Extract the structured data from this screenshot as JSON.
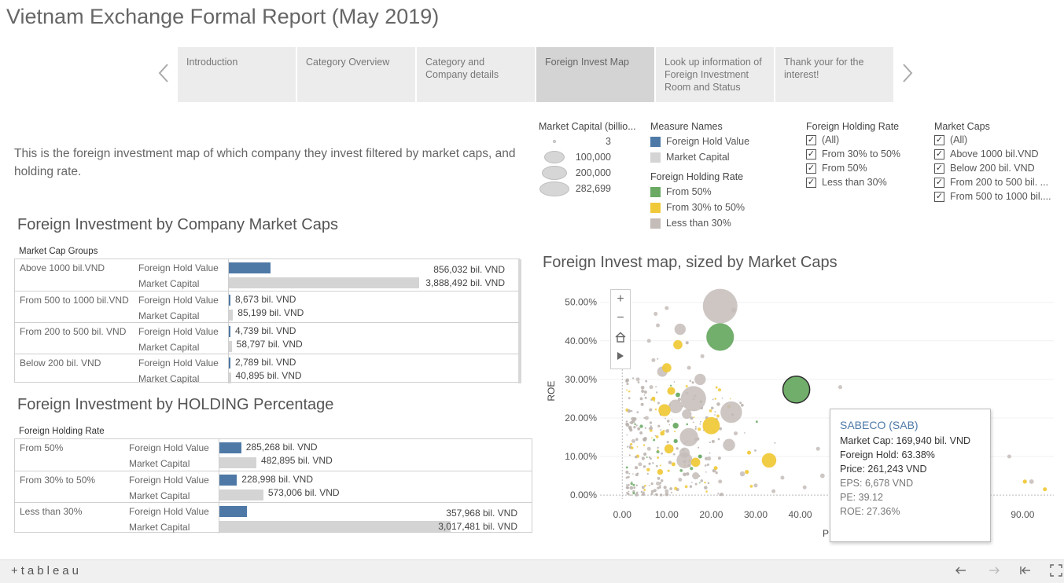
{
  "title": "Vietnam Exchange Formal Report (May 2019)",
  "story": {
    "prev_icon": "chevron-left-icon",
    "next_icon": "chevron-right-icon",
    "tabs": [
      {
        "label": "Introduction"
      },
      {
        "label": "Category Overview"
      },
      {
        "label": "Category and Company details"
      },
      {
        "label": "Foreign Invest Map",
        "active": true
      },
      {
        "label": "Look up information of Foreign Investment Room and Status"
      },
      {
        "label": "Thank your for the interest!"
      }
    ]
  },
  "intro_text": "This is the foreign investment map of which company they invest filtered by market caps, and holding rate.",
  "legends": {
    "size": {
      "title": "Market Capital (billio...",
      "items": [
        "3",
        "100,000",
        "200,000",
        "282,699"
      ]
    },
    "measure_names": {
      "title": "Measure Names",
      "items": [
        {
          "label": "Foreign Hold Value",
          "color": "#4e79a7"
        },
        {
          "label": "Market Capital",
          "color": "#d4d4d4"
        }
      ]
    },
    "holding_rate_color": {
      "title": "Foreign Holding Rate",
      "items": [
        {
          "label": "From 50%",
          "color": "#6aaa64"
        },
        {
          "label": "From 30% to 50%",
          "color": "#f0c93b"
        },
        {
          "label": "Less than 30%",
          "color": "#c4bcb8"
        }
      ]
    },
    "holding_rate_filter": {
      "title": "Foreign Holding Rate",
      "items": [
        "(All)",
        "From 30% to 50%",
        "From 50%",
        "Less than 30%"
      ]
    },
    "market_caps_filter": {
      "title": "Market Caps",
      "items": [
        "(All)",
        "Above 1000 bil.VND",
        "Below 200 bil. VND",
        "From 200 to 500 bil. ...",
        "From 500 to 1000 bil...."
      ]
    }
  },
  "caps_table": {
    "title": "Foreign Investment by Company Market Caps",
    "group_header": "Market Cap Groups",
    "measure_labels": [
      "Foreign Hold Value",
      "Market Capital"
    ],
    "max_value": 3888492,
    "rows": [
      {
        "group": "Above 1000 bil.VND",
        "fhv": 856032,
        "fhv_label": "856,032 bil. VND",
        "mc": 3888492,
        "mc_label": "3,888,492 bil. VND"
      },
      {
        "group": "From 500 to 1000 bil.VND",
        "fhv": 8673,
        "fhv_label": "8,673 bil. VND",
        "mc": 85199,
        "mc_label": "85,199 bil. VND"
      },
      {
        "group": "From 200 to 500 bil. VND",
        "fhv": 4739,
        "fhv_label": "4,739 bil. VND",
        "mc": 58797,
        "mc_label": "58,797 bil. VND"
      },
      {
        "group": "Below 200 bil. VND",
        "fhv": 2789,
        "fhv_label": "2,789 bil. VND",
        "mc": 40895,
        "mc_label": "40,895 bil. VND"
      }
    ]
  },
  "holding_table": {
    "title": "Foreign Investment by HOLDING Percentage",
    "group_header": "Foreign Holding Rate",
    "measure_labels": [
      "Foreign Hold Value",
      "Market Capital"
    ],
    "max_value": 3017481,
    "rows": [
      {
        "group": "From 50%",
        "fhv": 285268,
        "fhv_label": "285,268 bil. VND",
        "mc": 482895,
        "mc_label": "482,895 bil. VND"
      },
      {
        "group": "From 30% to 50%",
        "fhv": 228998,
        "fhv_label": "228,998 bil. VND",
        "mc": 573006,
        "mc_label": "573,006 bil. VND"
      },
      {
        "group": "Less than 30%",
        "fhv": 357968,
        "fhv_label": "357,968 bil. VND",
        "mc": 3017481,
        "mc_label": "3,017,481 bil. VND"
      }
    ]
  },
  "chart_data": {
    "type": "scatter",
    "title": "Foreign Invest map, sized by Market Caps",
    "xlabel": "P",
    "ylabel": "ROE",
    "xlim": [
      -5,
      97
    ],
    "ylim": [
      -1,
      53
    ],
    "x_ticks": [
      "0.00",
      "10.00",
      "20.00",
      "30.00",
      "40.00",
      "90.00"
    ],
    "y_ticks": [
      "0.00%",
      "10.00%",
      "20.00%",
      "30.00%",
      "40.00%",
      "50.00%"
    ],
    "size_by": "Market Capital",
    "color_by": "Foreign Holding Rate",
    "points": [
      {
        "x": 22.0,
        "y": 49.0,
        "cap": 282699,
        "rate": "Less than 30%"
      },
      {
        "x": 22.0,
        "y": 41.0,
        "cap": 180000,
        "rate": "From 50%"
      },
      {
        "x": 39.12,
        "y": 27.36,
        "cap": 169940,
        "rate": "From 50%",
        "label": "SABECO (SAB)"
      },
      {
        "x": 16.0,
        "y": 25.0,
        "cap": 150000,
        "rate": "Less than 30%"
      },
      {
        "x": 24.5,
        "y": 21.5,
        "cap": 110000,
        "rate": "Less than 30%"
      },
      {
        "x": 20.0,
        "y": 18.0,
        "cap": 70000,
        "rate": "From 30% to 50%"
      },
      {
        "x": 15.0,
        "y": 15.0,
        "cap": 80000,
        "rate": "Less than 30%"
      },
      {
        "x": 14.0,
        "y": 9.0,
        "cap": 60000,
        "rate": "Less than 30%"
      },
      {
        "x": 33.0,
        "y": 9.0,
        "cap": 50000,
        "rate": "From 30% to 50%"
      },
      {
        "x": 12.0,
        "y": 23.0,
        "cap": 45000,
        "rate": "Less than 30%"
      },
      {
        "x": 13.0,
        "y": 43.0,
        "cap": 30000,
        "rate": "Less than 30%"
      },
      {
        "x": 12.5,
        "y": 39.0,
        "cap": 20000,
        "rate": "From 30% to 50%"
      },
      {
        "x": 9.5,
        "y": 22.0,
        "cap": 35000,
        "rate": "From 30% to 50%"
      },
      {
        "x": 24.0,
        "y": 13.0,
        "cap": 35000,
        "rate": "Less than 30%"
      },
      {
        "x": 17.5,
        "y": 30.0,
        "cap": 30000,
        "rate": "Less than 30%"
      },
      {
        "x": 10.0,
        "y": 33.0,
        "cap": 20000,
        "rate": "From 30% to 50%"
      },
      {
        "x": 11.0,
        "y": 27.0,
        "cap": 15000,
        "rate": "From 30% to 50%"
      },
      {
        "x": 9.0,
        "y": 32.0,
        "cap": 25000,
        "rate": "Less than 30%"
      },
      {
        "x": 14.0,
        "y": 11.0,
        "cap": 25000,
        "rate": "Less than 30%"
      },
      {
        "x": 16.5,
        "y": 8.5,
        "cap": 20000,
        "rate": "From 30% to 50%"
      },
      {
        "x": 10.5,
        "y": 12.0,
        "cap": 20000,
        "rate": "From 30% to 50%"
      },
      {
        "x": 16.5,
        "y": 5.0,
        "cap": 12000,
        "rate": "Less than 30%"
      },
      {
        "x": 14.5,
        "y": 21.0,
        "cap": 22000,
        "rate": "Less than 30%"
      },
      {
        "x": 8.5,
        "y": 6.0,
        "cap": 8000,
        "rate": "From 30% to 50%"
      },
      {
        "x": 12.0,
        "y": 18.0,
        "cap": 8000,
        "rate": "From 50%"
      },
      {
        "x": 12.5,
        "y": 26.0,
        "cap": 5000,
        "rate": "From 50%"
      },
      {
        "x": 12.0,
        "y": 14.0,
        "cap": 4000,
        "rate": "From 50%"
      },
      {
        "x": 17.5,
        "y": 10.0,
        "cap": 3000,
        "rate": "From 50%"
      },
      {
        "x": 11.5,
        "y": 8.0,
        "cap": 3000,
        "rate": "From 30% to 50%"
      },
      {
        "x": 9.0,
        "y": 16.0,
        "cap": 5000,
        "rate": "From 30% to 50%"
      },
      {
        "x": 27.0,
        "y": 5.5,
        "cap": 6000,
        "rate": "Less than 30%"
      },
      {
        "x": 28.0,
        "y": 6.0,
        "cap": 4000,
        "rate": "From 30% to 50%"
      },
      {
        "x": 36.0,
        "y": 4.5,
        "cap": 3000,
        "rate": "Less than 30%"
      },
      {
        "x": 45.0,
        "y": 5.0,
        "cap": 5000,
        "rate": "Less than 30%"
      },
      {
        "x": 90.5,
        "y": 3.5,
        "cap": 4000,
        "rate": "From 30% to 50%"
      },
      {
        "x": 92.0,
        "y": 3.5,
        "cap": 5000,
        "rate": "Less than 30%"
      },
      {
        "x": 95.0,
        "y": 1.5,
        "cap": 2000,
        "rate": "From 30% to 50%"
      },
      {
        "x": 7.5,
        "y": 47.0,
        "cap": 2000,
        "rate": "Less than 30%"
      },
      {
        "x": 8.0,
        "y": 44.0,
        "cap": 2000,
        "rate": "Less than 30%"
      },
      {
        "x": 10.0,
        "y": 48.5,
        "cap": 2500,
        "rate": "Less than 30%"
      },
      {
        "x": 25.0,
        "y": 48.0,
        "cap": 6000,
        "rate": "Less than 30%"
      },
      {
        "x": 6.0,
        "y": 40.0,
        "cap": 3000,
        "rate": "Less than 30%"
      },
      {
        "x": 19.5,
        "y": 9.5,
        "cap": 4000,
        "rate": "Less than 30%"
      },
      {
        "x": 6.5,
        "y": 28.0,
        "cap": 3000,
        "rate": "Less than 30%"
      },
      {
        "x": 7.0,
        "y": 25.0,
        "cap": 2500,
        "rate": "From 30% to 50%"
      },
      {
        "x": 5.5,
        "y": 20.0,
        "cap": 2000,
        "rate": "Less than 30%"
      },
      {
        "x": 6.0,
        "y": 12.0,
        "cap": 1500,
        "rate": "Less than 30%"
      },
      {
        "x": 8.0,
        "y": 3.0,
        "cap": 1500,
        "rate": "Less than 30%"
      },
      {
        "x": 22.0,
        "y": 3.5,
        "cap": 1500,
        "rate": "Less than 30%"
      },
      {
        "x": 30.0,
        "y": 2.5,
        "cap": 1000,
        "rate": "Less than 30%"
      },
      {
        "x": 34.0,
        "y": 1.0,
        "cap": 1000,
        "rate": "Less than 30%"
      },
      {
        "x": 41.0,
        "y": 2.0,
        "cap": 800,
        "rate": "Less than 30%"
      },
      {
        "x": 50.0,
        "y": 3.0,
        "cap": 800,
        "rate": "Less than 30%"
      },
      {
        "x": 87.0,
        "y": 10.0,
        "cap": 500,
        "rate": "Less than 30%"
      },
      {
        "x": 49.0,
        "y": 28.0,
        "cap": 300,
        "rate": "Less than 30%"
      },
      {
        "x": 44.0,
        "y": 12.0,
        "cap": 500,
        "rate": "Less than 30%"
      },
      {
        "x": 18.0,
        "y": 36.0,
        "cap": 800,
        "rate": "Less than 30%"
      },
      {
        "x": 15.0,
        "y": 33.0,
        "cap": 1000,
        "rate": "Less than 30%"
      },
      {
        "x": 7.0,
        "y": 35.0,
        "cap": 800,
        "rate": "Less than 30%"
      },
      {
        "x": 3.5,
        "y": 30.0,
        "cap": 600,
        "rate": "Less than 30%"
      },
      {
        "x": 2.5,
        "y": 14.0,
        "cap": 600,
        "rate": "Less than 30%"
      },
      {
        "x": 4.0,
        "y": 8.0,
        "cap": 600,
        "rate": "Less than 30%"
      },
      {
        "x": 25.5,
        "y": 16.0,
        "cap": 900,
        "rate": "Less than 30%"
      },
      {
        "x": 28.5,
        "y": 11.0,
        "cap": 700,
        "rate": "From 30% to 50%"
      },
      {
        "x": 21.0,
        "y": 7.0,
        "cap": 900,
        "rate": "From 30% to 50%"
      },
      {
        "x": 13.0,
        "y": 4.0,
        "cap": 1200,
        "rate": "Less than 30%"
      },
      {
        "x": 10.0,
        "y": 1.0,
        "cap": 700,
        "rate": "Less than 30%"
      }
    ]
  },
  "map_tools": {
    "zoom_in": "+",
    "zoom_out": "−",
    "home_icon": "home-icon",
    "pan_icon": "play-icon"
  },
  "tooltip": {
    "name": "SABECO (SAB)",
    "lines": [
      "Market Cap: 169,940 bil. VND",
      "Foreign Hold: 63.38%",
      "Price: 261,243 VND",
      "EPS:    6,678 VND",
      "PE:   39.12",
      "ROE: 27.36%"
    ]
  },
  "bottom_bar": {
    "logo": "+tableau",
    "controls": [
      "undo-icon",
      "redo-icon",
      "revert-icon",
      "fullscreen-icon"
    ]
  }
}
